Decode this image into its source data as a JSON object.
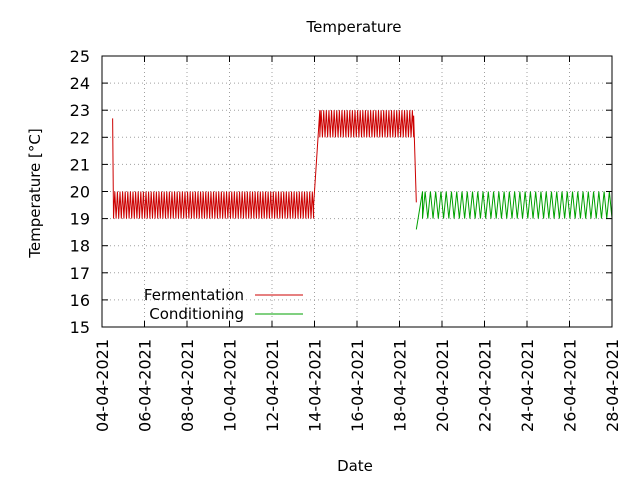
{
  "chart_data": {
    "type": "line",
    "title": "Temperature",
    "xlabel": "Date",
    "ylabel": "Temperature [°C]",
    "xlim": [
      "2021-04-04",
      "2021-04-28"
    ],
    "ylim": [
      15,
      25
    ],
    "grid": true,
    "legend_position": "bottom-left",
    "x_ticks": [
      "04-04-2021",
      "06-04-2021",
      "08-04-2021",
      "10-04-2021",
      "12-04-2021",
      "14-04-2021",
      "16-04-2021",
      "18-04-2021",
      "20-04-2021",
      "22-04-2021",
      "24-04-2021",
      "26-04-2021",
      "28-04-2021"
    ],
    "y_ticks": [
      15,
      16,
      17,
      18,
      19,
      20,
      21,
      22,
      23,
      24,
      25
    ],
    "series": [
      {
        "name": "Fermentation",
        "color": "#cc0000",
        "segments": [
          {
            "x_start": "2021-04-04T12:00",
            "x_end": "2021-04-04T13:00",
            "from": 22.7,
            "to": 19.0
          },
          {
            "x_start": "2021-04-04T13:00",
            "x_end": "2021-04-13T23:00",
            "oscillation": [
              19.0,
              20.0
            ]
          },
          {
            "x_start": "2021-04-13T23:00",
            "x_end": "2021-04-14T06:00",
            "from": 19.5,
            "to": 23.0
          },
          {
            "x_start": "2021-04-14T06:00",
            "x_end": "2021-04-18T16:00",
            "oscillation": [
              22.0,
              23.0
            ]
          },
          {
            "x_start": "2021-04-18T16:00",
            "x_end": "2021-04-18T19:00",
            "from": 22.8,
            "to": 19.6
          }
        ]
      },
      {
        "name": "Conditioning",
        "color": "#00a000",
        "segments": [
          {
            "x_start": "2021-04-18T19:00",
            "x_end": "2021-04-19T02:00",
            "from": 18.6,
            "to": 20.0
          },
          {
            "x_start": "2021-04-19T02:00",
            "x_end": "2021-04-28T00:00",
            "oscillation": [
              19.0,
              20.0
            ]
          }
        ]
      }
    ]
  }
}
